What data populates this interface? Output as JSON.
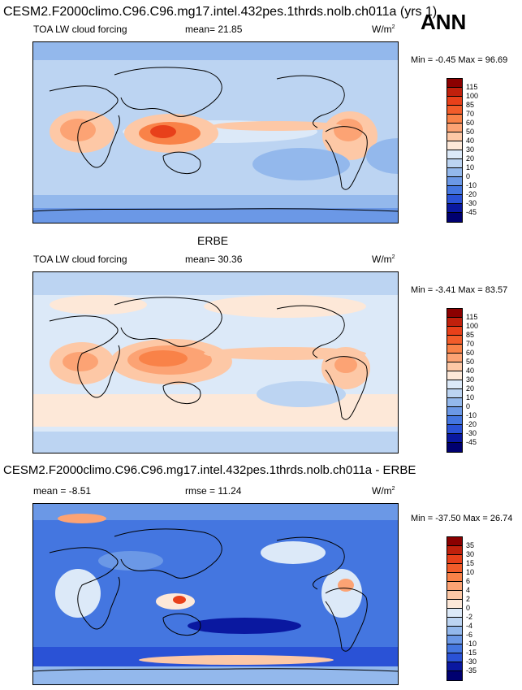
{
  "page": {
    "title": "CESM2.F2000climo.C96.C96.mg17.intel.432pes.1thrds.nolb.ch011a (yrs 1)",
    "season": "ANN"
  },
  "panels": [
    {
      "heading": "",
      "left_label": "TOA LW cloud forcing",
      "center_label": "mean=  21.85",
      "units": "W/m",
      "units_sup": "2",
      "minmax": "Min =  -0.45 Max =  96.69",
      "levels": [
        "115",
        "100",
        "85",
        "70",
        "60",
        "50",
        "40",
        "30",
        "20",
        "10",
        "0",
        "-10",
        "-20",
        "-30",
        "-45"
      ],
      "colors": [
        "#8b0000",
        "#c0200c",
        "#e8401a",
        "#f25c2a",
        "#f98248",
        "#fca374",
        "#fdc8a6",
        "#fde8d8",
        "#dce9f8",
        "#bcd4f2",
        "#93b8ec",
        "#6b98e6",
        "#4476e0",
        "#2a52d6",
        "#0a18a0",
        "#000070"
      ]
    },
    {
      "heading": "ERBE",
      "left_label": "TOA LW cloud forcing",
      "center_label": "mean=  30.36",
      "units": "W/m",
      "units_sup": "2",
      "minmax": "Min =  -3.41 Max =  83.57",
      "levels": [
        "115",
        "100",
        "85",
        "70",
        "60",
        "50",
        "40",
        "30",
        "20",
        "10",
        "0",
        "-10",
        "-20",
        "-30",
        "-45"
      ],
      "colors": [
        "#8b0000",
        "#c0200c",
        "#e8401a",
        "#f25c2a",
        "#f98248",
        "#fca374",
        "#fdc8a6",
        "#fde8d8",
        "#dce9f8",
        "#bcd4f2",
        "#93b8ec",
        "#6b98e6",
        "#4476e0",
        "#2a52d6",
        "#0a18a0",
        "#000070"
      ]
    },
    {
      "heading": "CESM2.F2000climo.C96.C96.mg17.intel.432pes.1thrds.nolb.ch011a - ERBE",
      "left_label": "mean =  -8.51",
      "center_label": "rmse =  11.24",
      "units": "W/m",
      "units_sup": "2",
      "minmax": "Min = -37.50 Max =  26.74",
      "levels": [
        "35",
        "30",
        "15",
        "10",
        "6",
        "4",
        "2",
        "0",
        "-2",
        "-4",
        "-6",
        "-10",
        "-15",
        "-30",
        "-35"
      ],
      "colors": [
        "#8b0000",
        "#c0200c",
        "#e8401a",
        "#f25c2a",
        "#f98248",
        "#fca374",
        "#fdc8a6",
        "#fde8d8",
        "#dce9f8",
        "#bcd4f2",
        "#93b8ec",
        "#6b98e6",
        "#4476e0",
        "#2a52d6",
        "#0a18a0",
        "#000070"
      ]
    }
  ]
}
